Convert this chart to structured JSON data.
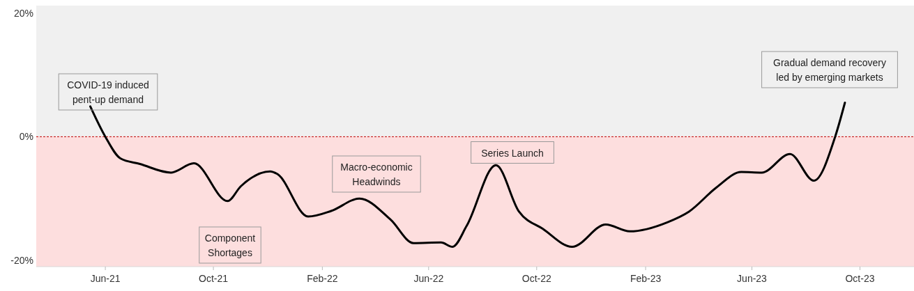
{
  "chart_data": {
    "type": "line",
    "x": [
      "2021-05-15",
      "2021-06-01",
      "2021-06-18",
      "2021-07-10",
      "2021-08-14",
      "2021-09-09",
      "2021-10-17",
      "2021-11-01",
      "2021-12-04",
      "2021-12-12",
      "2022-01-16",
      "2022-02-11",
      "2022-03-15",
      "2022-04-19",
      "2022-05-15",
      "2022-06-15",
      "2022-06-28",
      "2022-07-14",
      "2022-08-16",
      "2022-09-11",
      "2022-10-08",
      "2022-11-10",
      "2022-12-18",
      "2023-01-14",
      "2023-02-26",
      "2023-03-22",
      "2023-04-22",
      "2023-05-20",
      "2023-06-12",
      "2023-07-14",
      "2023-08-10",
      "2023-09-03",
      "2023-09-14"
    ],
    "series": [
      {
        "color": "#000000",
        "values": [
          4.9,
          0,
          -3.5,
          -4.4,
          -5.8,
          -4.3,
          -10.4,
          -8.0,
          -5.6,
          -6.0,
          -12.9,
          -12.0,
          -10.0,
          -13.4,
          -17.2,
          -17.1,
          -17.8,
          -14.4,
          -4.6,
          -12.1,
          -14.9,
          -17.8,
          -14.2,
          -15.3,
          -13.8,
          -12.1,
          -8.2,
          -5.7,
          -5.8,
          -2.8,
          -7.1,
          0,
          5.5
        ]
      }
    ],
    "xlim": [
      "2021-03-15",
      "2023-12-01"
    ],
    "xticks": [
      {
        "value": "2021-06-01",
        "label": "Jun-21"
      },
      {
        "value": "2021-10-01",
        "label": "Oct-21"
      },
      {
        "value": "2022-02-01",
        "label": "Feb-22"
      },
      {
        "value": "2022-06-01",
        "label": "Jun-22"
      },
      {
        "value": "2022-10-01",
        "label": "Oct-22"
      },
      {
        "value": "2023-02-01",
        "label": "Feb-23"
      },
      {
        "value": "2023-06-01",
        "label": "Jun-23"
      },
      {
        "value": "2023-10-01",
        "label": "Oct-23"
      }
    ],
    "ylim": [
      -21,
      21.2
    ],
    "yticks": [
      {
        "value": -20,
        "label": "-20%"
      },
      {
        "value": 0,
        "label": "0%"
      },
      {
        "value": 20,
        "label": "20%"
      }
    ],
    "bands": [
      {
        "axis": "y",
        "from": 0,
        "to": 21.2,
        "color": "#f0f0f0"
      },
      {
        "axis": "y",
        "from": -21,
        "to": 0,
        "color": "#fddede"
      }
    ],
    "ref_lines": [
      {
        "axis": "y",
        "value": 0,
        "color": "#c00000",
        "line_style": "dashed"
      }
    ],
    "annotations": [
      "COVID-19 induced\npent-up demand",
      "Component\nShortages",
      "Macro-economic\nHeadwinds",
      "Series Launch",
      "Gradual demand recovery\nled by emerging markets"
    ],
    "line_style": "solid"
  }
}
